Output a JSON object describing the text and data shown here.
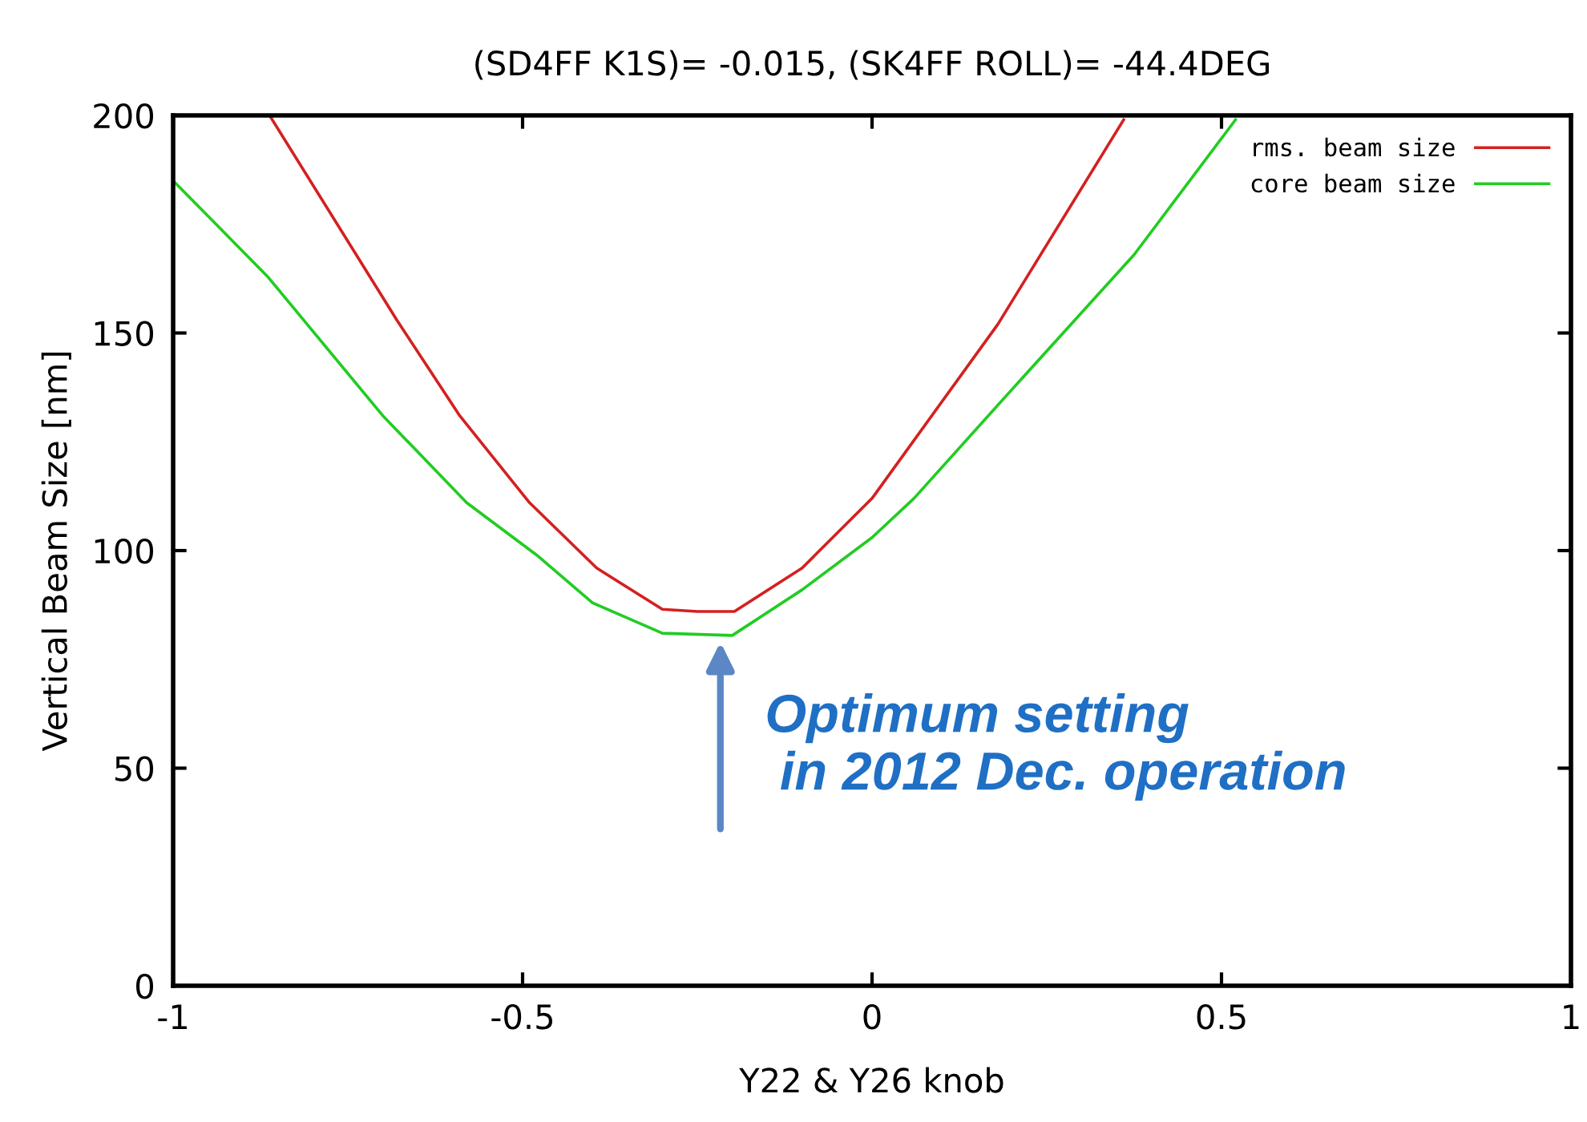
{
  "chart_data": {
    "type": "line",
    "title": "(SD4FF K1S)= -0.015, (SK4FF ROLL)= -44.4DEG",
    "xlabel": "Y22 & Y26 knob",
    "ylabel": "Vertical Beam Size [nm]",
    "series": [
      {
        "name": "rms. beam size",
        "color": "#d42020",
        "x": [
          -0.862,
          -0.68,
          -0.59,
          -0.49,
          -0.394,
          -0.3,
          -0.25,
          -0.197,
          -0.1,
          0,
          0.18,
          0.36
        ],
        "values": [
          200,
          153,
          131,
          111,
          96,
          86.5,
          86,
          86,
          96,
          112,
          152,
          199
        ]
      },
      {
        "name": "core beam size",
        "color": "#22cc22",
        "x": [
          -1,
          -0.865,
          -0.7,
          -0.58,
          -0.48,
          -0.4,
          -0.3,
          -0.2,
          -0.1,
          0,
          0.06,
          0.2,
          0.375,
          0.52
        ],
        "values": [
          185,
          163,
          131,
          111,
          99,
          88,
          81,
          80.5,
          91,
          103,
          112,
          137,
          168,
          199
        ]
      }
    ],
    "xlim": [
      -1,
      1
    ],
    "xticks": [
      -1,
      -0.5,
      0,
      0.5,
      1
    ],
    "ylim": [
      0,
      200
    ],
    "yticks": [
      0,
      50,
      100,
      150,
      200
    ],
    "legend": "top right",
    "grid": false,
    "annotations": [
      {
        "text": "Optimum setting\n in 2012 Dec. operation",
        "x": -0.217,
        "y": 80
      }
    ]
  }
}
